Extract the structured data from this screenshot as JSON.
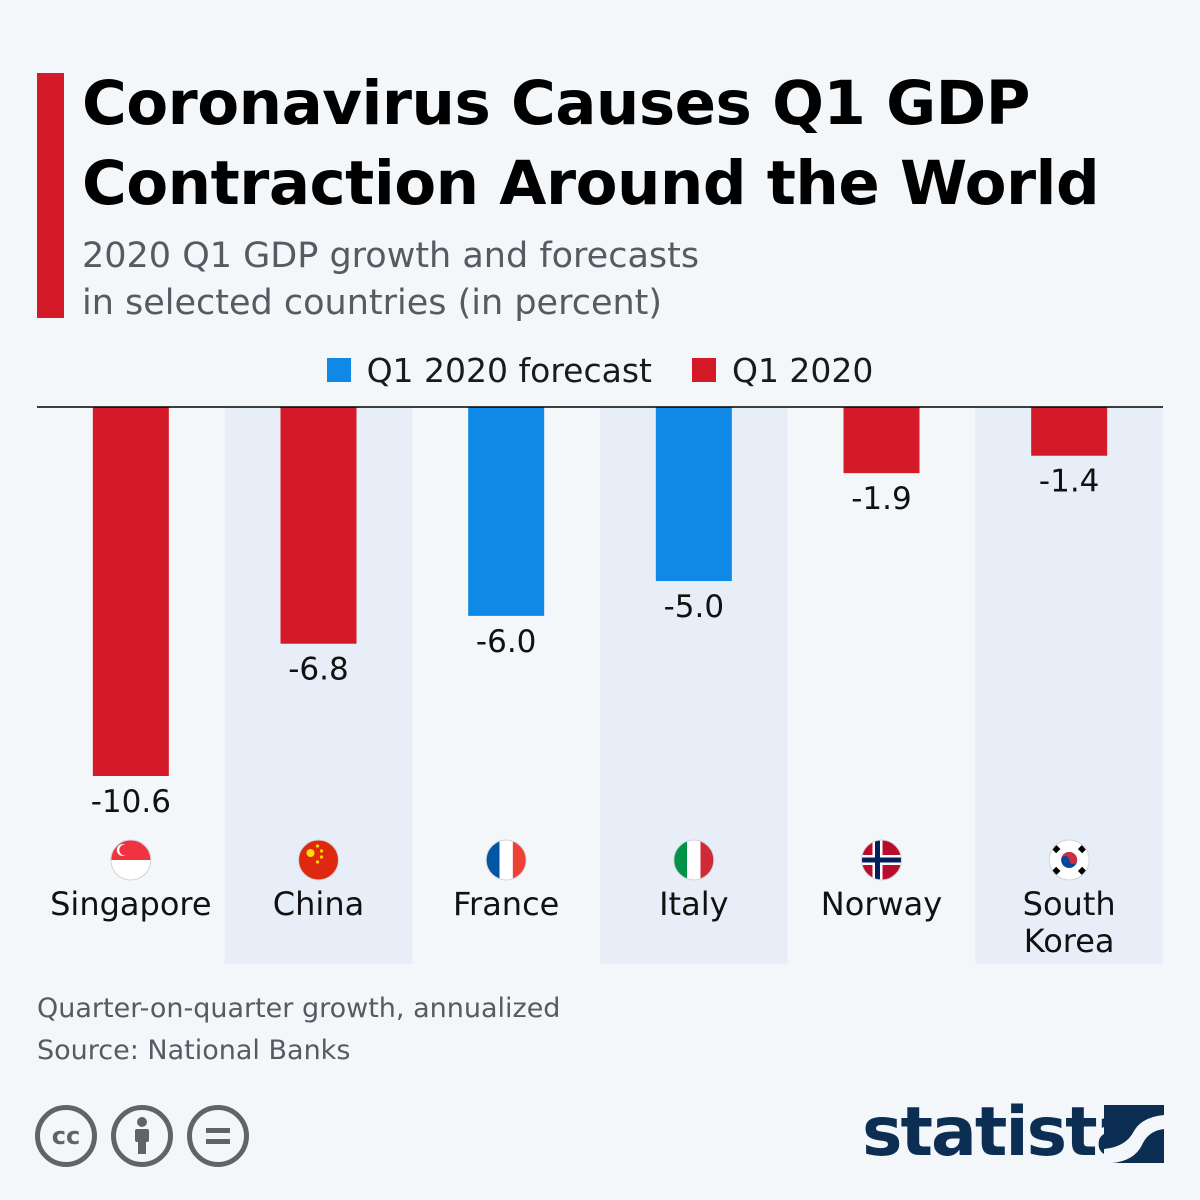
{
  "title": "Coronavirus Causes Q1 GDP Contraction Around the World",
  "subtitle_line1": "2020 Q1 GDP growth and forecasts",
  "subtitle_line2": "in selected countries (in percent)",
  "colors": {
    "accent": "#d41a28",
    "forecast": "#0f88e6",
    "actual": "#d41a28",
    "band": "#e8eef7",
    "brand": "#0d2e53"
  },
  "legend": [
    {
      "label": "Q1 2020 forecast",
      "color": "#0f88e6"
    },
    {
      "label": "Q1 2020",
      "color": "#d41a28"
    }
  ],
  "chart_data": {
    "type": "bar",
    "categories": [
      "Singapore",
      "China",
      "France",
      "Italy",
      "Norway",
      "South Korea"
    ],
    "category_lines": [
      [
        "Singapore"
      ],
      [
        "China"
      ],
      [
        "France"
      ],
      [
        "Italy"
      ],
      [
        "Norway"
      ],
      [
        "South",
        "Korea"
      ]
    ],
    "values": [
      -10.6,
      -6.8,
      -6.0,
      -5.0,
      -1.9,
      -1.4
    ],
    "value_labels": [
      "-10.6",
      "-6.8",
      "-6.0",
      "-5.0",
      "-1.9",
      "-1.4"
    ],
    "series_type": [
      "Q1 2020",
      "Q1 2020",
      "Q1 2020 forecast",
      "Q1 2020 forecast",
      "Q1 2020",
      "Q1 2020"
    ],
    "flags": [
      "singapore-flag-icon",
      "china-flag-icon",
      "france-flag-icon",
      "italy-flag-icon",
      "norway-flag-icon",
      "south-korea-flag-icon"
    ],
    "ylim": [
      -10.6,
      0
    ],
    "grid": false,
    "legend_position": "top-center"
  },
  "footnote_line1": "Quarter-on-quarter growth, annualized",
  "footnote_line2": "Source: National Banks",
  "license_icons": [
    "cc-icon",
    "attribution-icon",
    "no-derivatives-icon"
  ],
  "brand": "statista"
}
